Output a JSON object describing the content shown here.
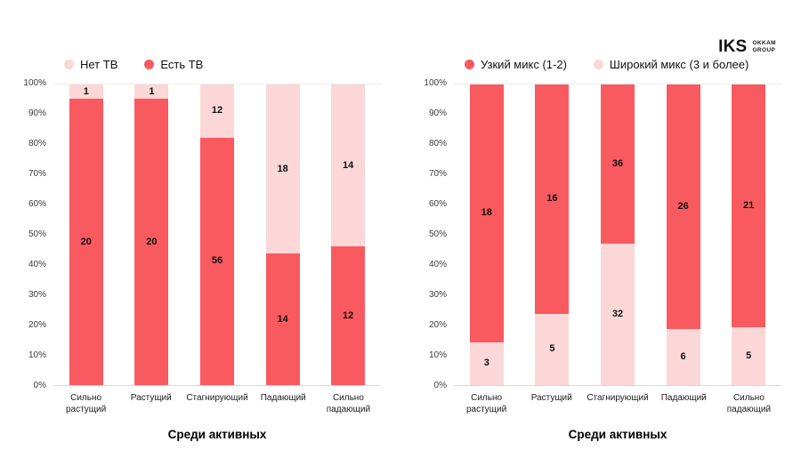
{
  "logo": {
    "brand": "IKS",
    "group_line1": "OKKAM",
    "group_line2": "GROUP"
  },
  "chart_data": [
    {
      "type": "bar",
      "subtype": "stacked-100-percent",
      "title": "Среди активных",
      "categories": [
        "Сильно растущий",
        "Растущий",
        "Стагнирующий",
        "Падающий",
        "Сильно падающий"
      ],
      "legend": [
        {
          "label": "Нет ТВ",
          "color": "#fbd7d8"
        },
        {
          "label": "Есть ТВ",
          "color": "#f85a5f"
        }
      ],
      "series": [
        {
          "name": "Есть ТВ",
          "color": "#f85a5f",
          "values": [
            20,
            20,
            56,
            14,
            12
          ]
        },
        {
          "name": "Нет ТВ",
          "color": "#fbd7d8",
          "values": [
            1,
            1,
            12,
            18,
            14
          ]
        }
      ],
      "ylim": [
        0,
        100
      ],
      "y_ticks": [
        "0%",
        "10%",
        "20%",
        "30%",
        "40%",
        "50%",
        "60%",
        "70%",
        "80%",
        "90%",
        "100%"
      ]
    },
    {
      "type": "bar",
      "subtype": "stacked-100-percent",
      "title": "Среди активных",
      "categories": [
        "Сильно растущий",
        "Растущий",
        "Стагнирующий",
        "Падающий",
        "Сильно падающий"
      ],
      "legend": [
        {
          "label": "Узкий микс (1-2)",
          "color": "#f85a5f"
        },
        {
          "label": "Широкий микс (3 и более)",
          "color": "#fbd7d8"
        }
      ],
      "series": [
        {
          "name": "Широкий микс (3 и более)",
          "color": "#fbd7d8",
          "values": [
            3,
            5,
            32,
            6,
            5
          ]
        },
        {
          "name": "Узкий микс (1-2)",
          "color": "#f85a5f",
          "values": [
            18,
            16,
            36,
            26,
            21
          ]
        }
      ],
      "ylim": [
        0,
        100
      ],
      "y_ticks": [
        "0%",
        "10%",
        "20%",
        "30%",
        "40%",
        "50%",
        "60%",
        "70%",
        "80%",
        "90%",
        "100%"
      ]
    }
  ]
}
